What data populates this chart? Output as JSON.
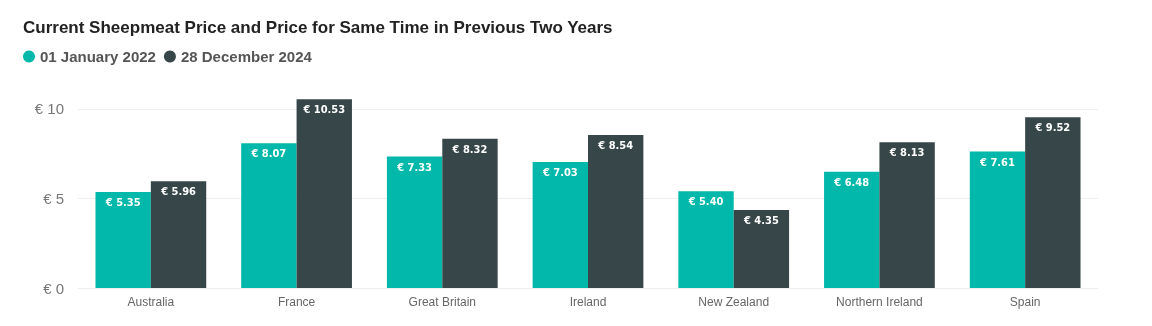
{
  "chart_data": {
    "type": "bar",
    "title": "Current Sheepmeat Price and Price for Same Time in Previous Two Years",
    "categories": [
      "Australia",
      "France",
      "Great Britain",
      "Ireland",
      "New Zealand",
      "Northern Ireland",
      "Spain"
    ],
    "series": [
      {
        "name": "01 January 2022",
        "color": "#01b8aa",
        "values": [
          5.35,
          8.07,
          7.33,
          7.03,
          5.4,
          6.48,
          7.61
        ],
        "value_labels": [
          "€ 5.35",
          "€ 8.07",
          "€ 7.33",
          "€ 7.03",
          "€ 5.40",
          "€ 6.48",
          "€ 7.61"
        ]
      },
      {
        "name": "28 December 2024",
        "color": "#374649",
        "values": [
          5.96,
          10.53,
          8.32,
          8.54,
          4.35,
          8.13,
          9.52
        ],
        "value_labels": [
          "€ 5.96",
          "€ 10.53",
          "€ 8.32",
          "€ 8.54",
          "€ 4.35",
          "€ 8.13",
          "€ 9.52"
        ]
      }
    ],
    "ylim": [
      0,
      10.6
    ],
    "yticks": [
      {
        "value": 0,
        "label": "€ 0"
      },
      {
        "value": 5,
        "label": "€ 5"
      },
      {
        "value": 10,
        "label": "€ 10"
      }
    ],
    "grid": "y",
    "legend": "top left"
  }
}
